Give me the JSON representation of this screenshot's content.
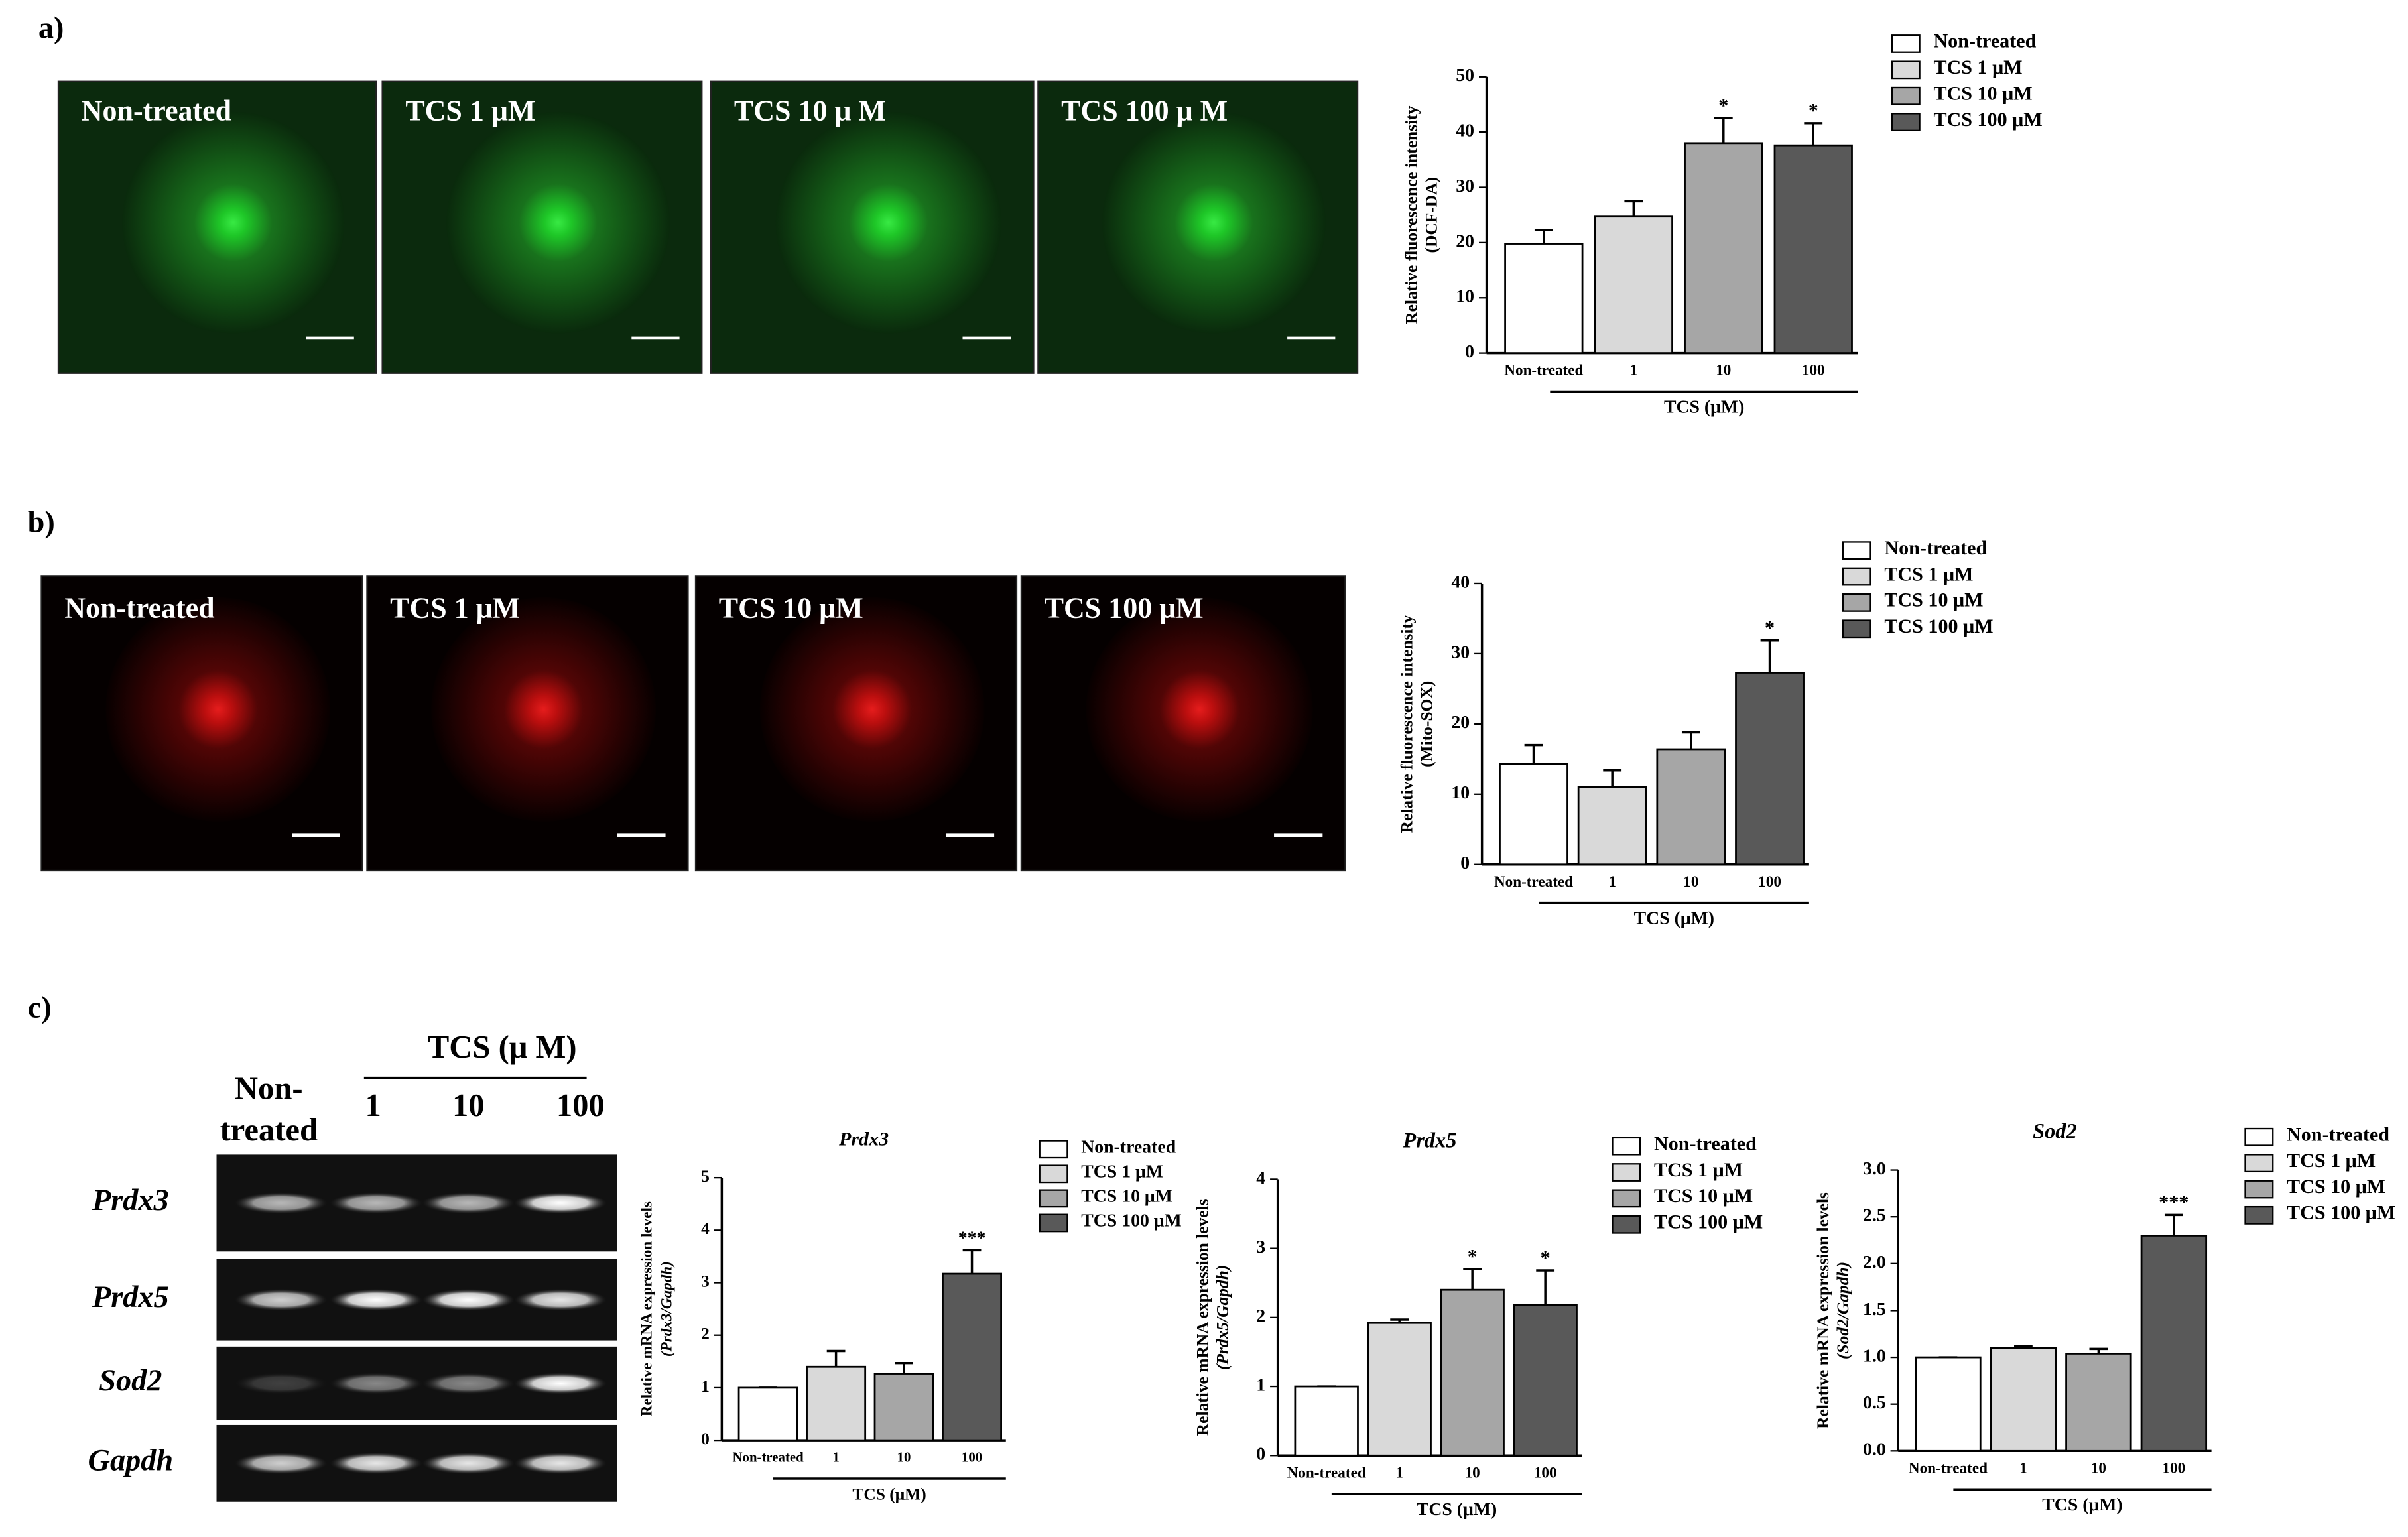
{
  "panels": [
    {
      "label": "a)",
      "images": [
        "Non-treated",
        "TCS 1 μM",
        "TCS 10 μ M",
        "TCS 100 μ M"
      ]
    },
    {
      "label": "b)",
      "images": [
        "Non-treated",
        "TCS 1 μM",
        "TCS 10 μM",
        "TCS 100 μM"
      ]
    },
    {
      "label": "c)",
      "gel": {
        "group": "TCS (μ M)",
        "lanes": [
          "Non-",
          "treated",
          "1",
          "10",
          "100"
        ],
        "rows": [
          "Prdx3",
          "Prdx5",
          "Sod2",
          "Gapdh"
        ]
      }
    }
  ],
  "chart_data": [
    {
      "type": "bar",
      "y_label": [
        "Relative fluorescence intensity",
        "(DCF-DA)"
      ],
      "categories": [
        "Non-treated",
        "1",
        "10",
        "100"
      ],
      "group_label": "TCS (μM)",
      "series": [
        {
          "names": [
            "Non-treated",
            "TCS 1 μM",
            "TCS 10 μM",
            "TCS 100 μM"
          ],
          "colors": [
            "#ffffff",
            "#d9d9d9",
            "#a6a6a6",
            "#595959"
          ],
          "values": [
            19.8,
            24.7,
            38,
            37.6
          ],
          "errors": [
            2.5,
            2.8,
            4.5,
            4
          ],
          "significance": [
            null,
            null,
            "*",
            "*"
          ]
        }
      ],
      "ylim": [
        0,
        50
      ],
      "yticks": [
        0,
        10,
        20,
        30,
        40,
        50
      ]
    },
    {
      "type": "bar",
      "y_label": [
        "Relative fluorescence intensity",
        "(Mito-SOX)"
      ],
      "categories": [
        "Non-treated",
        "1",
        "10",
        "100"
      ],
      "group_label": "TCS (μM)",
      "series": [
        {
          "names": [
            "Non-treated",
            "TCS 1 μM",
            "TCS 10 μM",
            "TCS 100 μM"
          ],
          "colors": [
            "#ffffff",
            "#d9d9d9",
            "#a6a6a6",
            "#595959"
          ],
          "values": [
            14.3,
            11,
            16.4,
            27.3
          ],
          "errors": [
            2.7,
            2.4,
            2.4,
            4.6
          ],
          "significance": [
            null,
            null,
            null,
            "*"
          ]
        }
      ],
      "ylim": [
        0,
        40
      ],
      "yticks": [
        0,
        10,
        20,
        30,
        40
      ]
    },
    {
      "type": "bar",
      "title": "Prdx3",
      "y_label": [
        "Relative mRNA expression levels",
        "(Prdx3/Gapdh)"
      ],
      "categories": [
        "Non-treated",
        "1",
        "10",
        "100"
      ],
      "group_label": "TCS (μM)",
      "series": [
        {
          "names": [
            "Non-treated",
            "TCS 1 μM",
            "TCS 10 μM",
            "TCS 100 μM"
          ],
          "colors": [
            "#ffffff",
            "#d9d9d9",
            "#a6a6a6",
            "#595959"
          ],
          "values": [
            1,
            1.4,
            1.27,
            3.17
          ],
          "errors": [
            0,
            0.3,
            0.2,
            0.45
          ],
          "significance": [
            null,
            null,
            null,
            "***"
          ]
        }
      ],
      "ylim": [
        0,
        5
      ],
      "yticks": [
        0,
        1,
        2,
        3,
        4,
        5
      ]
    },
    {
      "type": "bar",
      "title": "Prdx5",
      "y_label": [
        "Relative mRNA expression levels",
        "(Prdx5/Gapdh)"
      ],
      "categories": [
        "Non-treated",
        "1",
        "10",
        "100"
      ],
      "group_label": "TCS (μM)",
      "series": [
        {
          "names": [
            "Non-treated",
            "TCS 1 μM",
            "TCS 10 μM",
            "TCS 100 μM"
          ],
          "colors": [
            "#ffffff",
            "#d9d9d9",
            "#a6a6a6",
            "#595959"
          ],
          "values": [
            1,
            1.92,
            2.4,
            2.18
          ],
          "errors": [
            0,
            0.05,
            0.3,
            0.5
          ],
          "significance": [
            null,
            null,
            "*",
            "*"
          ]
        }
      ],
      "ylim": [
        0,
        4
      ],
      "yticks": [
        0,
        1,
        2,
        3,
        4
      ]
    },
    {
      "type": "bar",
      "title": "Sod2",
      "y_label": [
        "Relative mRNA expression levels",
        "(Sod2/Gapdh)"
      ],
      "categories": [
        "Non-treated",
        "1",
        "10",
        "100"
      ],
      "group_label": "TCS (μM)",
      "series": [
        {
          "names": [
            "Non-treated",
            "TCS 1 μM",
            "TCS 10 μM",
            "TCS 100 μM"
          ],
          "colors": [
            "#ffffff",
            "#d9d9d9",
            "#a6a6a6",
            "#595959"
          ],
          "values": [
            1,
            1.1,
            1.04,
            2.3
          ],
          "errors": [
            0,
            0.02,
            0.05,
            0.22
          ],
          "significance": [
            null,
            null,
            null,
            "***"
          ]
        }
      ],
      "ylim": [
        0,
        3
      ],
      "yticks": [
        {
          "value": 0,
          "label": "0.0"
        },
        {
          "value": 0.5,
          "label": "0.5"
        },
        {
          "value": 1,
          "label": "1.0"
        },
        {
          "value": 1.5,
          "label": "1.5"
        },
        {
          "value": 2,
          "label": "2.0"
        },
        {
          "value": 2.5,
          "label": "2.5"
        },
        {
          "value": 3,
          "label": "3.0"
        }
      ]
    }
  ]
}
